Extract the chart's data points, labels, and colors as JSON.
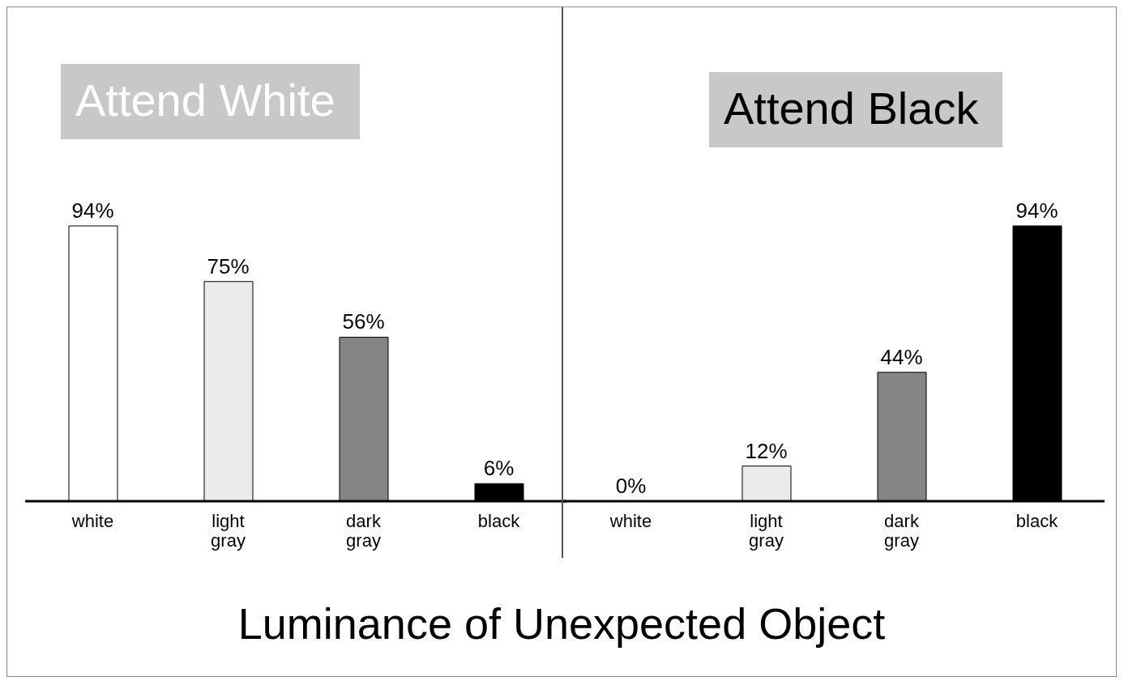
{
  "chart_data": [
    {
      "type": "bar",
      "title": "Attend White",
      "xlabel": "Luminance of Unexpected Object",
      "categories": [
        "white",
        "light gray",
        "dark gray",
        "black"
      ],
      "values": [
        94,
        75,
        56,
        6
      ],
      "colors": [
        "#ffffff",
        "#ebebeb",
        "#858585",
        "#000000"
      ],
      "value_labels": [
        "94%",
        "75%",
        "56%",
        "6%"
      ]
    },
    {
      "type": "bar",
      "title": "Attend Black",
      "categories": [
        "white",
        "light gray",
        "dark gray",
        "black"
      ],
      "values": [
        0,
        12,
        44,
        94
      ],
      "colors": [
        "#ffffff",
        "#ebebeb",
        "#858585",
        "#000000"
      ],
      "value_labels": [
        "0%",
        "12%",
        "44%",
        "94%"
      ]
    }
  ]
}
